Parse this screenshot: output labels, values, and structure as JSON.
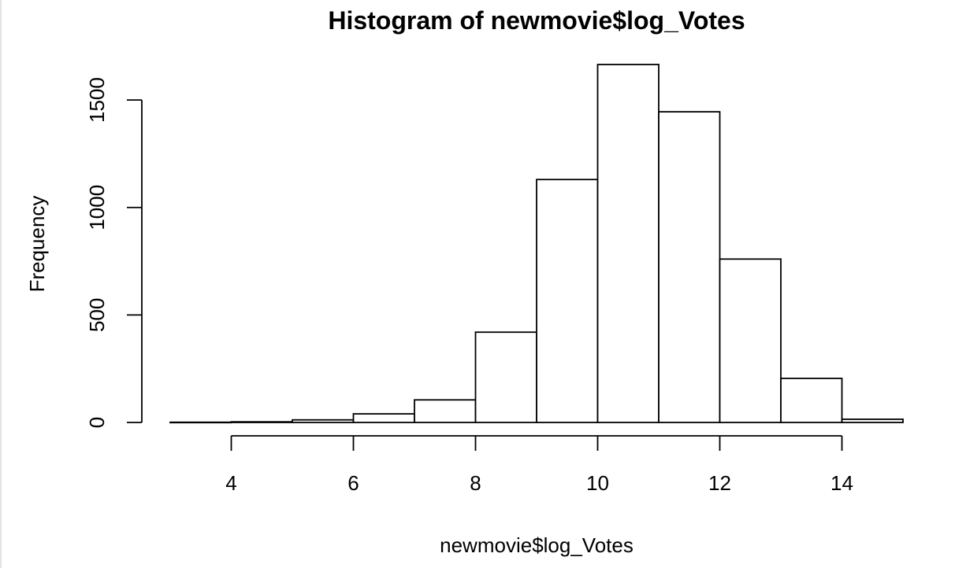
{
  "chart_data": {
    "type": "bar",
    "title": "Histogram of newmovie$log_Votes",
    "xlabel": "newmovie$log_Votes",
    "ylabel": "Frequency",
    "bin_edges": [
      3,
      4,
      5,
      6,
      7,
      8,
      9,
      10,
      11,
      12,
      13,
      14,
      15
    ],
    "values": [
      1,
      3,
      12,
      40,
      105,
      420,
      1130,
      1665,
      1445,
      760,
      205,
      15
    ],
    "xlim": [
      3,
      15
    ],
    "ylim": [
      0,
      1665
    ],
    "x_ticks": [
      4,
      6,
      8,
      10,
      12,
      14
    ],
    "y_ticks": [
      0,
      500,
      1000,
      1500
    ],
    "grid": false,
    "bar_fill": "#ffffff",
    "bar_stroke": "#000000"
  }
}
